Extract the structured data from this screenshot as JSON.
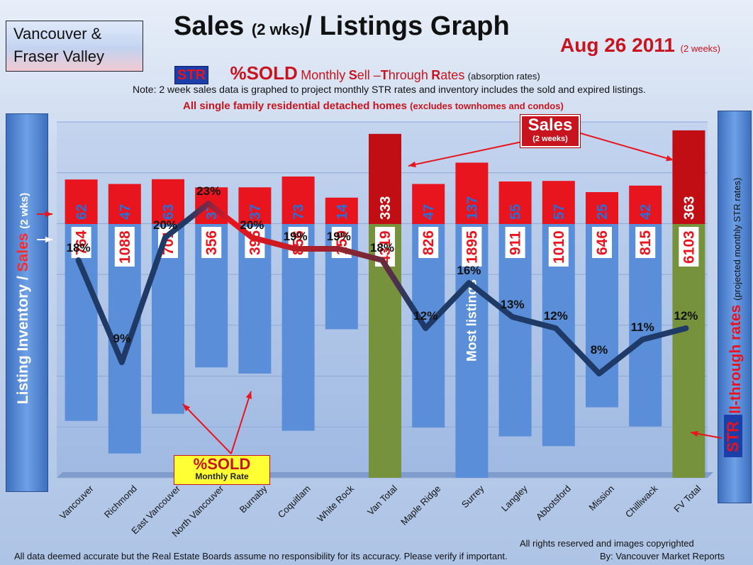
{
  "header": {
    "region_line1": "Vancouver &",
    "region_line2": "Fraser Valley",
    "title_main": "Sales",
    "title_paren": "(2 wks)",
    "title_rest": "/ Listings Graph",
    "date": "Aug 26 2011",
    "date_note": "(2 weeks)",
    "str_badge": "STR",
    "str_sold": "%SOLD",
    "str_rest_1": "Monthly",
    "str_S": "S",
    "str_rest_2": "ell –",
    "str_T": "T",
    "str_rest_3": "hrough",
    "str_R": "R",
    "str_rest_4": "ates",
    "str_absorption": "(absorption rates)",
    "note": "Note: 2 week sales data is graphed to project monthly STR rates and inventory includes the sold and expired listings.",
    "single_family": "All single family residential detached homes",
    "single_family_note": "(excludes townhomes and condos)"
  },
  "left_axis": {
    "label_inventory": "Listing Inventory /",
    "label_sales": "Sales",
    "label_paren": "(2 wks)"
  },
  "right_axis": {
    "label_str": "Sell-through rates",
    "label_paren": "(projected monthly STR rates)",
    "badge": "STR"
  },
  "callouts": {
    "sales_title": "Sales",
    "sales_sub": "(2 weeks)",
    "sold_title": "%SOLD",
    "sold_sub": "Monthly Rate",
    "most_listings": "Most listings"
  },
  "footer": {
    "rights": "All rights reserved and  images copyrighted",
    "disclaimer": "All data deemed accurate but the Real Estate Boards assume no responsibility for its accuracy.  Please verify if important.",
    "byline": "By: Vancouver Market Reports"
  },
  "colors": {
    "sales_bar": "#e8141e",
    "sales_bar_total": "#c10e14",
    "inventory_bar": "#5a8ed8",
    "inventory_bar_total": "#76923c",
    "str_line_dark": "#1f3a66",
    "str_line_red": "#e8141e",
    "label_text": "#e8141e"
  },
  "chart_data": {
    "type": "bar",
    "categories": [
      "Vancouver",
      "Richmond",
      "East Vancouver",
      "North Vancouver",
      "Burnaby",
      "Coquitlam",
      "White Rock",
      "Van Total",
      "Maple Ridge",
      "Surrey",
      "Langley",
      "Abbotsford",
      "Mission",
      "Chilliwack",
      "FV Total"
    ],
    "series": [
      {
        "name": "Sales",
        "values": [
          62,
          47,
          63,
          37,
          37,
          73,
          14,
          333,
          47,
          137,
          55,
          57,
          25,
          42,
          363
        ]
      },
      {
        "name": "Listing Inventory",
        "values": [
          764,
          1088,
          701,
          356,
          395,
          856,
          159,
          4319,
          826,
          1895,
          911,
          1010,
          646,
          815,
          6103
        ]
      },
      {
        "name": "STR",
        "values": [
          18,
          9,
          20,
          23,
          20,
          19,
          19,
          18,
          12,
          16,
          13,
          12,
          8,
          11,
          12
        ],
        "unit": "%"
      }
    ],
    "totals": [
      "Van Total",
      "FV Total"
    ]
  }
}
